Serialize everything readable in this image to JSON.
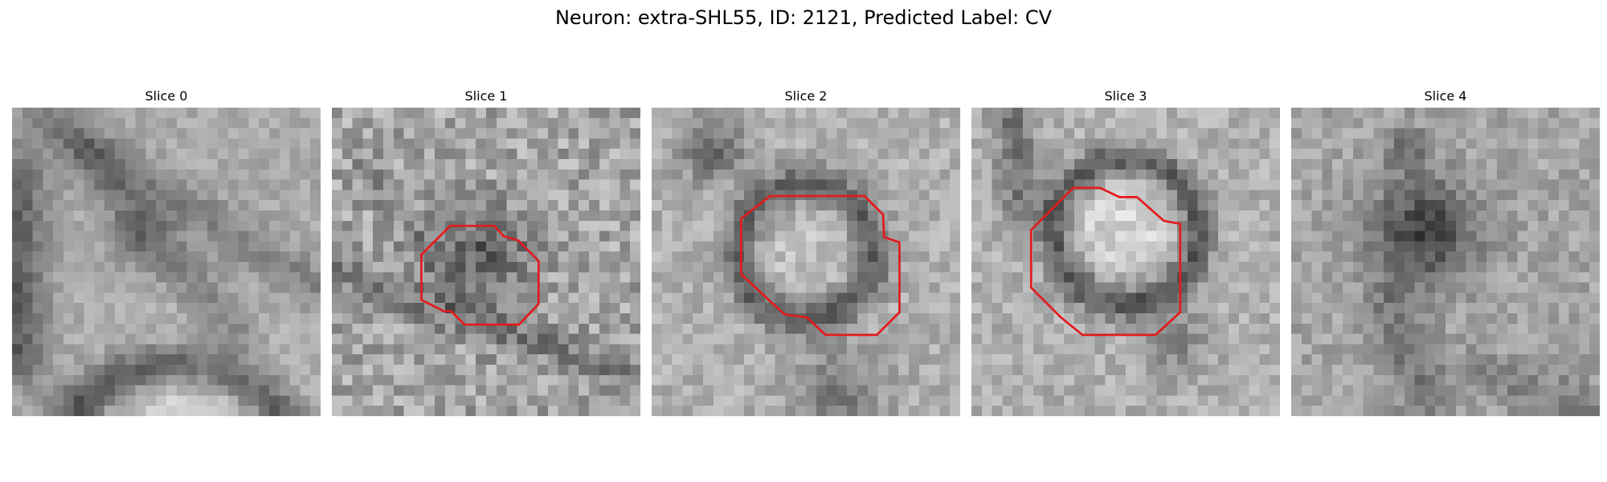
{
  "figure": {
    "title": "Neuron: extra-SHL55, ID: 2121, Predicted Label: CV",
    "colors": {
      "contour": "#e31a1c",
      "colormap": "grayscale"
    },
    "panels": [
      {
        "title": "Slice 0",
        "has_contour": false
      },
      {
        "title": "Slice 1",
        "has_contour": true
      },
      {
        "title": "Slice 2",
        "has_contour": true
      },
      {
        "title": "Slice 3",
        "has_contour": true
      },
      {
        "title": "Slice 4",
        "has_contour": false
      }
    ]
  }
}
